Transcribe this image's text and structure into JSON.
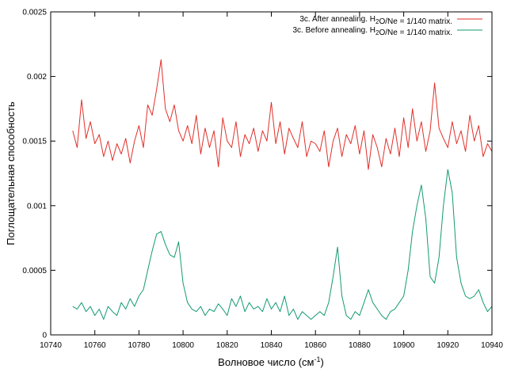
{
  "chart_data": {
    "type": "line",
    "title": "",
    "xlabel": "Волновое число (см",
    "xlabel_sup": "-1",
    "xlabel_end": ")",
    "ylabel": "Поглощательная способность",
    "xlim": [
      10740,
      10940
    ],
    "ylim": [
      0,
      0.0025
    ],
    "xticks": [
      "10740",
      "10760",
      "10780",
      "10800",
      "10820",
      "10840",
      "10860",
      "10880",
      "10900",
      "10920",
      "10940"
    ],
    "xtick_values": [
      10740,
      10760,
      10780,
      10800,
      10820,
      10840,
      10860,
      10880,
      10900,
      10920,
      10940
    ],
    "yticks": [
      "0",
      "0.0005",
      "0.001",
      "0.0015",
      "0.002",
      "0.0025"
    ],
    "ytick_values": [
      0,
      0.0005,
      0.001,
      0.0015,
      0.002,
      0.0025
    ],
    "legend_position": "top-right",
    "series": [
      {
        "legend": [
          {
            "text": "3c. After annealing. H"
          },
          {
            "text": "2",
            "sub": true
          },
          {
            "text": "O/Ne = 1/140 matrix."
          }
        ],
        "color": "#e0302a",
        "x": [
          10750,
          10752,
          10754,
          10756,
          10758,
          10760,
          10762,
          10764,
          10766,
          10768,
          10770,
          10772,
          10774,
          10776,
          10778,
          10780,
          10782,
          10784,
          10786,
          10788,
          10790,
          10792,
          10794,
          10796,
          10798,
          10800,
          10802,
          10804,
          10806,
          10808,
          10810,
          10812,
          10814,
          10816,
          10818,
          10820,
          10822,
          10824,
          10826,
          10828,
          10830,
          10832,
          10834,
          10836,
          10838,
          10840,
          10842,
          10844,
          10846,
          10848,
          10850,
          10852,
          10854,
          10856,
          10858,
          10860,
          10862,
          10864,
          10866,
          10868,
          10870,
          10872,
          10874,
          10876,
          10878,
          10880,
          10882,
          10884,
          10886,
          10888,
          10890,
          10892,
          10894,
          10896,
          10898,
          10900,
          10902,
          10904,
          10906,
          10908,
          10910,
          10912,
          10914,
          10916,
          10918,
          10920,
          10922,
          10924,
          10926,
          10928,
          10930,
          10932,
          10934,
          10936,
          10938,
          10940
        ],
        "y": [
          0.00158,
          0.00145,
          0.00182,
          0.00152,
          0.00165,
          0.00148,
          0.00155,
          0.00138,
          0.0015,
          0.00135,
          0.00148,
          0.0014,
          0.00152,
          0.00133,
          0.0015,
          0.00162,
          0.00145,
          0.00178,
          0.0017,
          0.0019,
          0.00213,
          0.00175,
          0.00165,
          0.00178,
          0.00158,
          0.0015,
          0.00162,
          0.00148,
          0.0017,
          0.0014,
          0.0016,
          0.00145,
          0.00158,
          0.0013,
          0.00168,
          0.0015,
          0.00145,
          0.00165,
          0.00138,
          0.00155,
          0.00148,
          0.0016,
          0.00142,
          0.00158,
          0.0015,
          0.0018,
          0.00148,
          0.00165,
          0.0014,
          0.0016,
          0.00152,
          0.00145,
          0.00165,
          0.00138,
          0.0015,
          0.00148,
          0.00142,
          0.00158,
          0.0013,
          0.0015,
          0.0016,
          0.00138,
          0.00155,
          0.00148,
          0.00162,
          0.0014,
          0.00158,
          0.00128,
          0.00155,
          0.00145,
          0.0013,
          0.00152,
          0.0014,
          0.0016,
          0.00138,
          0.00168,
          0.00145,
          0.00175,
          0.0015,
          0.00165,
          0.00142,
          0.00158,
          0.00195,
          0.0016,
          0.00152,
          0.00145,
          0.00165,
          0.00148,
          0.00158,
          0.00142,
          0.0017,
          0.0015,
          0.00162,
          0.00138,
          0.00148,
          0.00142
        ]
      },
      {
        "legend": [
          {
            "text": "3c. Before annealing. H"
          },
          {
            "text": "2",
            "sub": true
          },
          {
            "text": "O/Ne = 1/140 matrix."
          }
        ],
        "color": "#129a72",
        "x": [
          10750,
          10752,
          10754,
          10756,
          10758,
          10760,
          10762,
          10764,
          10766,
          10768,
          10770,
          10772,
          10774,
          10776,
          10778,
          10780,
          10782,
          10784,
          10786,
          10788,
          10790,
          10792,
          10794,
          10796,
          10798,
          10800,
          10802,
          10804,
          10806,
          10808,
          10810,
          10812,
          10814,
          10816,
          10818,
          10820,
          10822,
          10824,
          10826,
          10828,
          10830,
          10832,
          10834,
          10836,
          10838,
          10840,
          10842,
          10844,
          10846,
          10848,
          10850,
          10852,
          10854,
          10856,
          10858,
          10860,
          10862,
          10864,
          10866,
          10868,
          10870,
          10872,
          10874,
          10876,
          10878,
          10880,
          10882,
          10884,
          10886,
          10888,
          10890,
          10892,
          10894,
          10896,
          10898,
          10900,
          10902,
          10904,
          10906,
          10908,
          10910,
          10912,
          10914,
          10916,
          10918,
          10920,
          10922,
          10924,
          10926,
          10928,
          10930,
          10932,
          10934,
          10936,
          10938,
          10940
        ],
        "y": [
          0.00022,
          0.0002,
          0.00025,
          0.00018,
          0.00022,
          0.00015,
          0.0002,
          0.00012,
          0.00022,
          0.00018,
          0.00015,
          0.00025,
          0.0002,
          0.00028,
          0.00022,
          0.0003,
          0.00035,
          0.0005,
          0.00065,
          0.00078,
          0.0008,
          0.0007,
          0.00062,
          0.0006,
          0.00072,
          0.0004,
          0.00025,
          0.0002,
          0.00018,
          0.00022,
          0.00015,
          0.0002,
          0.00018,
          0.00024,
          0.0002,
          0.00015,
          0.00028,
          0.00022,
          0.0003,
          0.00018,
          0.00025,
          0.0002,
          0.00022,
          0.00018,
          0.00028,
          0.0002,
          0.00025,
          0.00018,
          0.0003,
          0.00015,
          0.0002,
          0.00012,
          0.00018,
          0.00015,
          0.00012,
          0.00015,
          0.00018,
          0.00015,
          0.00025,
          0.00045,
          0.00068,
          0.0003,
          0.00015,
          0.00012,
          0.00018,
          0.00015,
          0.00025,
          0.00035,
          0.00025,
          0.0002,
          0.00015,
          0.00012,
          0.00018,
          0.0002,
          0.00025,
          0.0003,
          0.0005,
          0.0008,
          0.001,
          0.00116,
          0.0009,
          0.00045,
          0.0004,
          0.0006,
          0.001,
          0.00128,
          0.0011,
          0.0006,
          0.0004,
          0.0003,
          0.00028,
          0.0003,
          0.00035,
          0.00025,
          0.00018,
          0.00022
        ]
      }
    ]
  }
}
